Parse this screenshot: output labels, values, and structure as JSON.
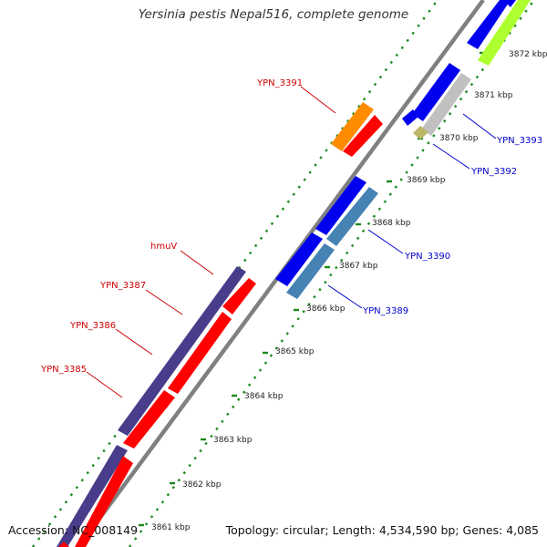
{
  "title": "Yersinia pestis Nepal516, complete genome",
  "accession": "Accession: NC_008149",
  "summary": "Topology: circular; Length: 4,534,590 bp; Genes: 4,085",
  "ticks": [
    "3861 kbp",
    "3862 kbp",
    "3863 kbp",
    "3864 kbp",
    "3865 kbp",
    "3866 kbp",
    "3867 kbp",
    "3868 kbp",
    "3869 kbp",
    "3870 kbp",
    "3871 kbp",
    "3872 kbp"
  ],
  "gene_labels": {
    "ypn3391": "YPN_3391",
    "hmuv": "hmuV",
    "ypn3387": "YPN_3387",
    "ypn3386": "YPN_3386",
    "ypn3385": "YPN_3385",
    "ypn3393": "YPN_3393",
    "ypn3392": "YPN_3392",
    "ypn3390": "YPN_3390",
    "ypn3389": "YPN_3389"
  },
  "colors": {
    "backbone": "#808080",
    "tick": "#1a8a1a",
    "red": "#ff0000",
    "orange": "#ff8c00",
    "navy": "#483d8b",
    "blue": "#0000ee",
    "steel": "#4682b4",
    "lime": "#adff2f",
    "silver": "#c0c0c0",
    "khaki": "#bdb76b",
    "red_label": "#cc0000",
    "blue_label": "#0000cc"
  }
}
